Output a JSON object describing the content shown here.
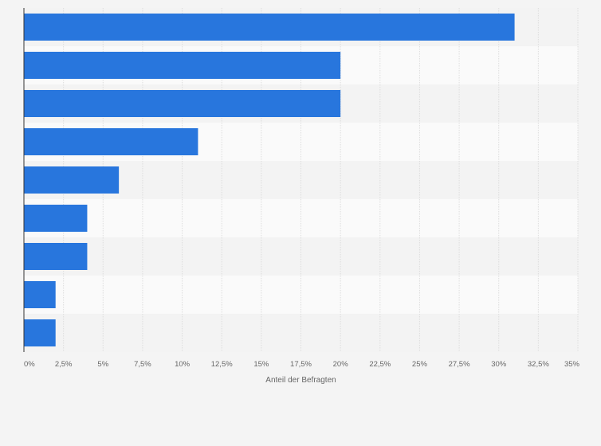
{
  "chart_data": {
    "type": "bar",
    "orientation": "horizontal",
    "categories": [
      "",
      "",
      "",
      "",
      "",
      "",
      "",
      "",
      ""
    ],
    "values": [
      31,
      20,
      20,
      11,
      6,
      4,
      4,
      2,
      2
    ],
    "xlabel": "Anteil der Befragten",
    "xlim": [
      0,
      35
    ],
    "ticks": [
      0,
      2.5,
      5,
      7.5,
      10,
      12.5,
      15,
      17.5,
      20,
      22.5,
      25,
      27.5,
      30,
      32.5,
      35
    ],
    "tick_labels": [
      "0%",
      "2,5%",
      "5%",
      "7,5%",
      "10%",
      "12,5%",
      "15%",
      "17,5%",
      "20%",
      "22,5%",
      "25%",
      "27,5%",
      "30%",
      "32,5%",
      "35%"
    ],
    "grid": true,
    "colors": {
      "bar": "#2876dd",
      "background": "#f4f4f4",
      "band_light": "#fafafa",
      "band_dark": "#f3f3f3",
      "grid": "#dddddd",
      "axis": "#333333",
      "text": "#666666"
    }
  }
}
